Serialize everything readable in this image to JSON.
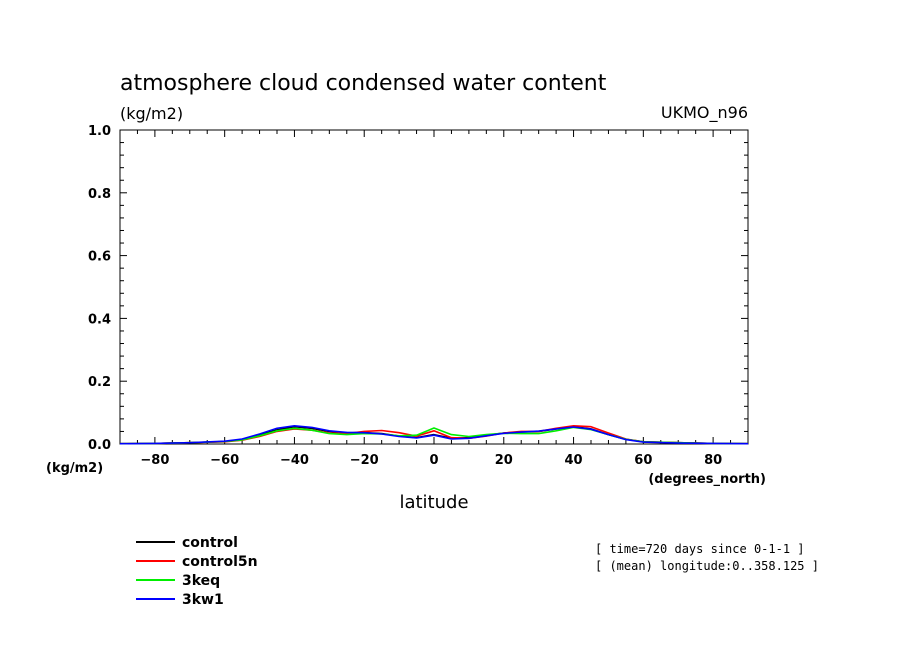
{
  "chart_data": {
    "type": "line",
    "title": "atmosphere cloud condensed water content",
    "units": "(kg/m2)",
    "model": "UKMO_n96",
    "ylabel": "(kg/m2)",
    "xlabel": "latitude",
    "xunits": "(degrees_north)",
    "xlim": [
      -90,
      90
    ],
    "ylim": [
      0,
      1
    ],
    "xticks": [
      -80,
      -60,
      -40,
      -20,
      0,
      20,
      40,
      60,
      80
    ],
    "xtick_labels": [
      "−80",
      "−60",
      "−40",
      "−20",
      "0",
      "20",
      "40",
      "60",
      "80"
    ],
    "yticks": [
      0,
      0.2,
      0.4,
      0.6,
      0.8,
      1.0
    ],
    "ytick_labels": [
      "0.0",
      "0.2",
      "0.4",
      "0.6",
      "0.8",
      "1.0"
    ],
    "grid": false,
    "legend_position": "bottom-left",
    "series": [
      {
        "name": "control",
        "color": "#000000",
        "x": [
          -90,
          -80,
          -70,
          -60,
          -55,
          -50,
          -45,
          -40,
          -35,
          -30,
          -25,
          -20,
          -15,
          -10,
          -5,
          0,
          5,
          10,
          15,
          20,
          25,
          30,
          35,
          40,
          45,
          50,
          55,
          60,
          70,
          80,
          90
        ],
        "y": [
          0.001,
          0.002,
          0.004,
          0.008,
          0.014,
          0.028,
          0.045,
          0.055,
          0.05,
          0.04,
          0.036,
          0.036,
          0.033,
          0.025,
          0.02,
          0.03,
          0.018,
          0.02,
          0.028,
          0.035,
          0.038,
          0.04,
          0.048,
          0.055,
          0.048,
          0.03,
          0.015,
          0.007,
          0.004,
          0.002,
          0.001
        ]
      },
      {
        "name": "control5n",
        "color": "#ff0000",
        "x": [
          -90,
          -80,
          -70,
          -60,
          -55,
          -50,
          -45,
          -40,
          -35,
          -30,
          -25,
          -20,
          -15,
          -10,
          -5,
          0,
          5,
          10,
          15,
          20,
          25,
          30,
          35,
          40,
          45,
          50,
          55,
          60,
          70,
          80,
          90
        ],
        "y": [
          0.001,
          0.002,
          0.004,
          0.007,
          0.012,
          0.024,
          0.04,
          0.048,
          0.044,
          0.035,
          0.033,
          0.04,
          0.043,
          0.036,
          0.025,
          0.042,
          0.02,
          0.018,
          0.025,
          0.035,
          0.04,
          0.04,
          0.05,
          0.058,
          0.055,
          0.035,
          0.016,
          0.007,
          0.004,
          0.002,
          0.001
        ]
      },
      {
        "name": "3keq",
        "color": "#00ee00",
        "x": [
          -90,
          -80,
          -70,
          -60,
          -55,
          -50,
          -45,
          -40,
          -35,
          -30,
          -25,
          -20,
          -15,
          -10,
          -5,
          0,
          5,
          10,
          15,
          20,
          25,
          30,
          35,
          40,
          45,
          50,
          55,
          60,
          70,
          80,
          90
        ],
        "y": [
          0.001,
          0.002,
          0.004,
          0.008,
          0.013,
          0.026,
          0.042,
          0.05,
          0.044,
          0.033,
          0.03,
          0.033,
          0.032,
          0.026,
          0.028,
          0.051,
          0.03,
          0.024,
          0.03,
          0.034,
          0.033,
          0.033,
          0.042,
          0.053,
          0.046,
          0.03,
          0.015,
          0.007,
          0.004,
          0.002,
          0.001
        ]
      },
      {
        "name": "3kw1",
        "color": "#0000ff",
        "x": [
          -90,
          -80,
          -70,
          -60,
          -55,
          -50,
          -45,
          -40,
          -35,
          -30,
          -25,
          -20,
          -15,
          -10,
          -5,
          0,
          5,
          10,
          15,
          20,
          25,
          30,
          35,
          40,
          45,
          50,
          55,
          60,
          70,
          80,
          90
        ],
        "y": [
          0.001,
          0.002,
          0.004,
          0.009,
          0.016,
          0.032,
          0.05,
          0.058,
          0.053,
          0.042,
          0.037,
          0.036,
          0.032,
          0.024,
          0.019,
          0.028,
          0.016,
          0.018,
          0.026,
          0.034,
          0.038,
          0.041,
          0.048,
          0.054,
          0.047,
          0.03,
          0.014,
          0.006,
          0.003,
          0.002,
          0.001
        ]
      }
    ]
  },
  "annotations": {
    "time": "[ time=720 days since 0-1-1 ]",
    "longitude": "[ (mean) longitude:0..358.125 ]"
  }
}
